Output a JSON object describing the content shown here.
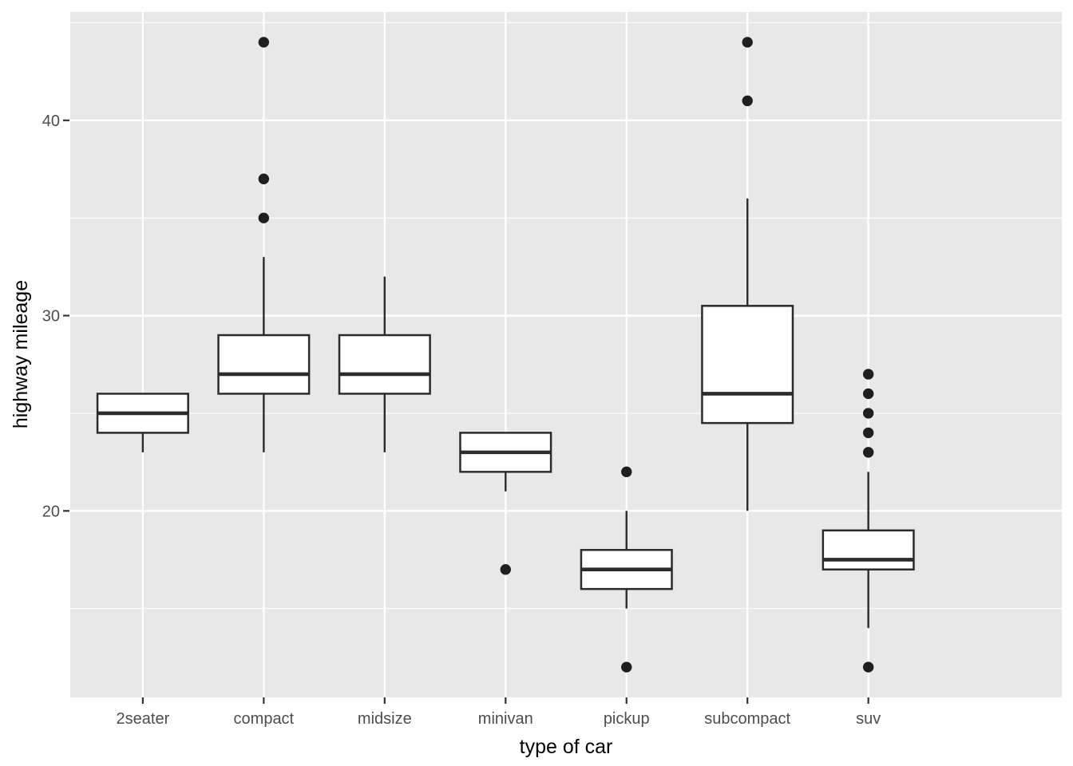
{
  "figure": {
    "xlabel": "type of car",
    "ylabel": "highway mileage"
  },
  "chart_data": {
    "type": "boxplot",
    "title": "",
    "xlabel": "type of car",
    "ylabel": "highway mileage",
    "categories": [
      "2seater",
      "compact",
      "midsize",
      "minivan",
      "pickup",
      "subcompact",
      "suv"
    ],
    "series": [
      {
        "category": "2seater",
        "whisker_low": 23,
        "q1": 24,
        "median": 25,
        "q3": 26,
        "whisker_high": 26,
        "outliers": []
      },
      {
        "category": "compact",
        "whisker_low": 23,
        "q1": 26,
        "median": 27,
        "q3": 29,
        "whisker_high": 33,
        "outliers": [
          35,
          37,
          44
        ]
      },
      {
        "category": "midsize",
        "whisker_low": 23,
        "q1": 26,
        "median": 27,
        "q3": 29,
        "whisker_high": 32,
        "outliers": []
      },
      {
        "category": "minivan",
        "whisker_low": 21,
        "q1": 22,
        "median": 23,
        "q3": 24,
        "whisker_high": 24,
        "outliers": [
          17
        ]
      },
      {
        "category": "pickup",
        "whisker_low": 15,
        "q1": 16,
        "median": 17,
        "q3": 18,
        "whisker_high": 20,
        "outliers": [
          12,
          22
        ]
      },
      {
        "category": "subcompact",
        "whisker_low": 20,
        "q1": 24.5,
        "median": 26,
        "q3": 30.5,
        "whisker_high": 36,
        "outliers": [
          41,
          44
        ]
      },
      {
        "category": "suv",
        "whisker_low": 14,
        "q1": 17,
        "median": 17.5,
        "q3": 19,
        "whisker_high": 22,
        "outliers": [
          12,
          23,
          24,
          25,
          26,
          27
        ]
      }
    ],
    "y_axis": {
      "ticks": [
        20,
        30,
        40
      ],
      "minor_ticks": [
        15,
        25,
        35,
        45
      ],
      "lim": [
        10.45,
        45.55
      ]
    },
    "grid": true,
    "legend_position": "none",
    "style": {
      "panel_bg": "#E8E8E8",
      "grid_color": "#FFFFFF",
      "box_fill": "#FFFFFF",
      "box_stroke": "#2B2B2B",
      "outlier_color": "#1F1F1F",
      "tick_label_color": "#4D4D4D",
      "axis_title_color": "#000000",
      "tick_mark_color": "#333333"
    }
  }
}
